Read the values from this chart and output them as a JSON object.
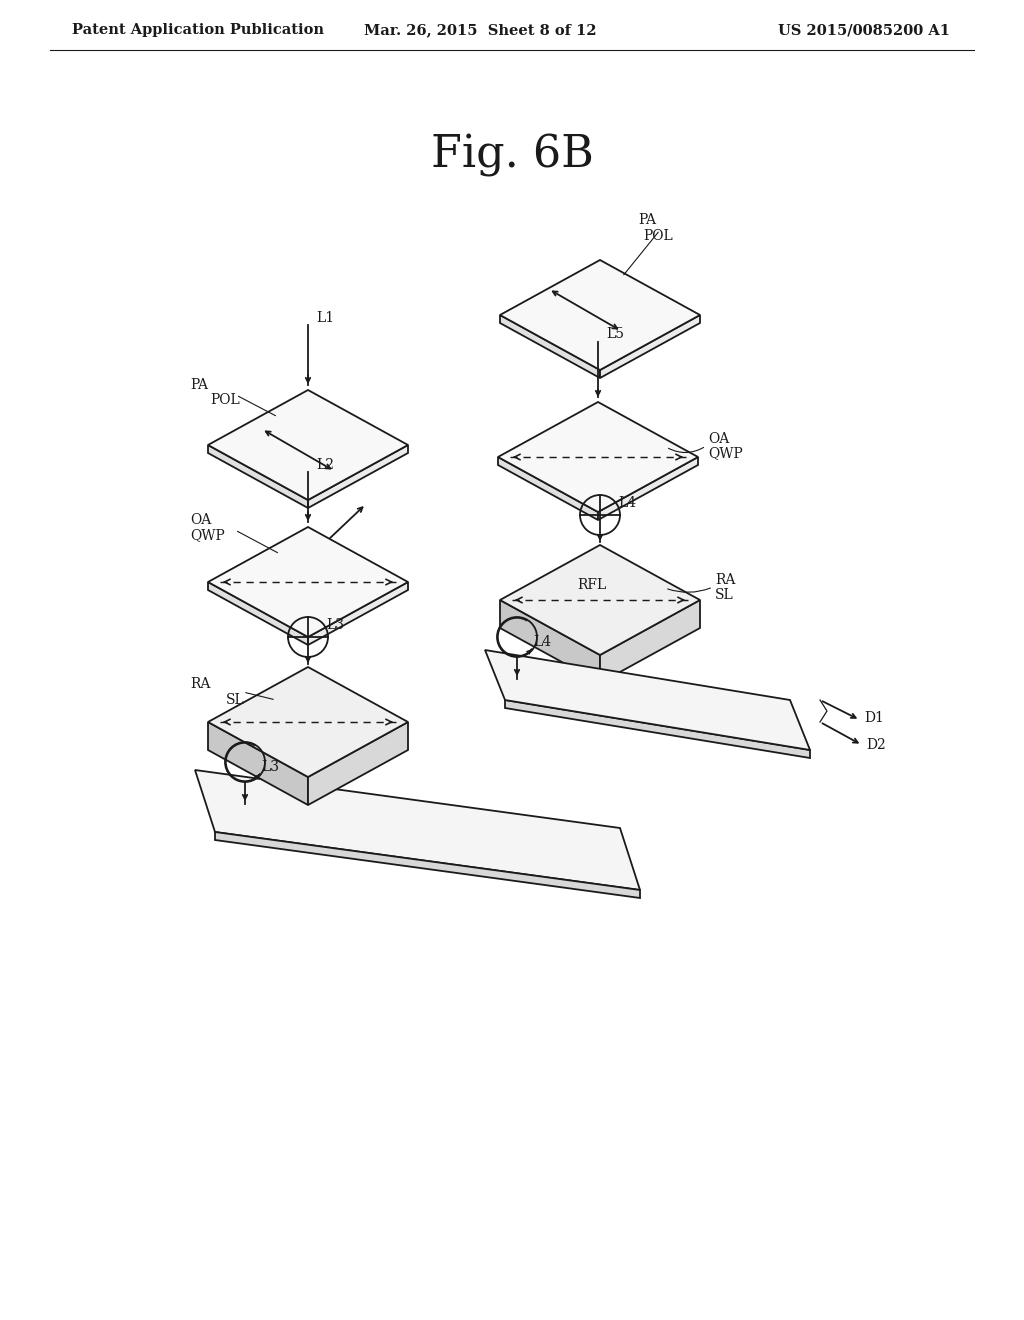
{
  "title": "Fig. 6B",
  "header_left": "Patent Application Publication",
  "header_center": "Mar. 26, 2015  Sheet 8 of 12",
  "header_right": "US 2015/0085200 A1",
  "bg_color": "#ffffff",
  "line_color": "#1a1a1a",
  "header_fontsize": 10.5,
  "title_fontsize": 32,
  "label_fontsize": 10
}
